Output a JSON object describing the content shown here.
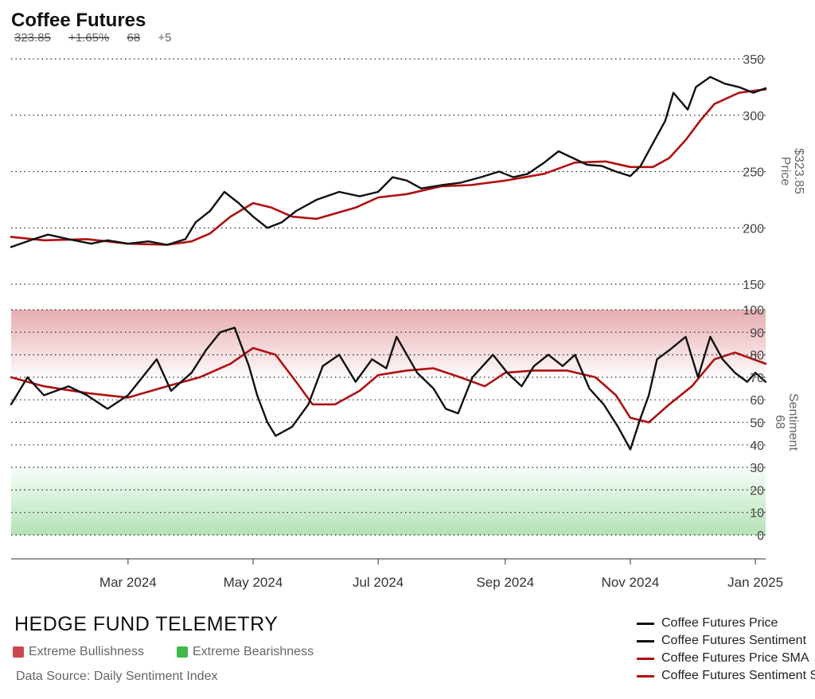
{
  "header": {
    "title": "Coffee Futures",
    "price": "323.85",
    "change": "+1.65%",
    "sentiment": "68",
    "sentiment_change": "+5"
  },
  "axes": {
    "price_label": "Price",
    "price_value": "$323.85",
    "sentiment_label": "Sentiment",
    "sentiment_value": "68"
  },
  "footer": {
    "brand": "HEDGE FUND TELEMETRY",
    "zone_bullish": "Extreme Bullishness",
    "zone_bearish": "Extreme Bearishness",
    "source": "Data Source: Daily Sentiment Index"
  },
  "legend": [
    {
      "label": "Coffee Futures Price",
      "color": "#111111"
    },
    {
      "label": "Coffee Futures Sentiment",
      "color": "#111111"
    },
    {
      "label": "Coffee Futures Price SMA",
      "color": "#b01010"
    },
    {
      "label": "Coffee Futures Sentiment SMA",
      "color": "#b01010"
    }
  ],
  "colors": {
    "price": "#111111",
    "sma": "#b01010",
    "bullish_zone": "#c9474f",
    "bearish_zone": "#3fb94a",
    "grid": "#222222"
  },
  "chart_data": {
    "type": "line",
    "x_range": [
      "2024-01-04",
      "2025-01-06"
    ],
    "x_ticks": [
      {
        "label": "Mar 2024",
        "date": "2024-03-01"
      },
      {
        "label": "May 2024",
        "date": "2024-05-01"
      },
      {
        "label": "Jul 2024",
        "date": "2024-07-01"
      },
      {
        "label": "Sep 2024",
        "date": "2024-09-01"
      },
      {
        "label": "Nov 2024",
        "date": "2024-11-01"
      },
      {
        "label": "Jan 2025",
        "date": "2025-01-01"
      }
    ],
    "price_panel": {
      "ylim": [
        150,
        350
      ],
      "yticks": [
        150,
        200,
        250,
        300,
        350
      ],
      "ylabel": "Price",
      "series": [
        {
          "name": "Coffee Futures Price",
          "points": [
            [
              "2024-01-04",
              183
            ],
            [
              "2024-01-15",
              190
            ],
            [
              "2024-01-22",
              194
            ],
            [
              "2024-02-01",
              190
            ],
            [
              "2024-02-12",
              186
            ],
            [
              "2024-02-20",
              189
            ],
            [
              "2024-03-01",
              186
            ],
            [
              "2024-03-11",
              188
            ],
            [
              "2024-03-20",
              185
            ],
            [
              "2024-03-29",
              190
            ],
            [
              "2024-04-03",
              205
            ],
            [
              "2024-04-10",
              215
            ],
            [
              "2024-04-17",
              232
            ],
            [
              "2024-04-24",
              222
            ],
            [
              "2024-05-01",
              210
            ],
            [
              "2024-05-08",
              200
            ],
            [
              "2024-05-15",
              205
            ],
            [
              "2024-05-22",
              215
            ],
            [
              "2024-06-01",
              225
            ],
            [
              "2024-06-12",
              232
            ],
            [
              "2024-06-22",
              228
            ],
            [
              "2024-07-01",
              232
            ],
            [
              "2024-07-08",
              245
            ],
            [
              "2024-07-15",
              242
            ],
            [
              "2024-07-22",
              235
            ],
            [
              "2024-08-01",
              238
            ],
            [
              "2024-08-10",
              240
            ],
            [
              "2024-08-20",
              245
            ],
            [
              "2024-08-29",
              250
            ],
            [
              "2024-09-05",
              245
            ],
            [
              "2024-09-12",
              248
            ],
            [
              "2024-09-20",
              258
            ],
            [
              "2024-09-27",
              268
            ],
            [
              "2024-10-04",
              262
            ],
            [
              "2024-10-11",
              256
            ],
            [
              "2024-10-18",
              255
            ],
            [
              "2024-10-25",
              250
            ],
            [
              "2024-11-01",
              246
            ],
            [
              "2024-11-06",
              255
            ],
            [
              "2024-11-12",
              275
            ],
            [
              "2024-11-18",
              295
            ],
            [
              "2024-11-22",
              320
            ],
            [
              "2024-11-29",
              305
            ],
            [
              "2024-12-03",
              325
            ],
            [
              "2024-12-10",
              334
            ],
            [
              "2024-12-17",
              328
            ],
            [
              "2024-12-24",
              325
            ],
            [
              "2024-12-31",
              320
            ],
            [
              "2025-01-06",
              324
            ]
          ]
        },
        {
          "name": "Coffee Futures Price SMA",
          "points": [
            [
              "2024-01-04",
              192
            ],
            [
              "2024-01-20",
              189
            ],
            [
              "2024-02-10",
              190
            ],
            [
              "2024-03-01",
              186
            ],
            [
              "2024-03-20",
              185
            ],
            [
              "2024-04-01",
              188
            ],
            [
              "2024-04-10",
              195
            ],
            [
              "2024-04-20",
              210
            ],
            [
              "2024-05-01",
              222
            ],
            [
              "2024-05-10",
              218
            ],
            [
              "2024-05-20",
              210
            ],
            [
              "2024-06-01",
              208
            ],
            [
              "2024-06-20",
              218
            ],
            [
              "2024-07-01",
              227
            ],
            [
              "2024-07-15",
              230
            ],
            [
              "2024-08-01",
              237
            ],
            [
              "2024-08-15",
              238
            ],
            [
              "2024-09-01",
              242
            ],
            [
              "2024-09-20",
              248
            ],
            [
              "2024-10-05",
              258
            ],
            [
              "2024-10-20",
              259
            ],
            [
              "2024-11-01",
              254
            ],
            [
              "2024-11-12",
              254
            ],
            [
              "2024-11-20",
              262
            ],
            [
              "2024-11-28",
              278
            ],
            [
              "2024-12-05",
              295
            ],
            [
              "2024-12-12",
              310
            ],
            [
              "2024-12-24",
              320
            ],
            [
              "2025-01-06",
              323
            ]
          ]
        }
      ]
    },
    "sentiment_panel": {
      "ylim": [
        0,
        100
      ],
      "yticks": [
        0,
        10,
        20,
        30,
        40,
        50,
        60,
        70,
        80,
        90,
        100
      ],
      "ylabel": "Sentiment",
      "bullish_zone": [
        70,
        100
      ],
      "bearish_zone": [
        0,
        30
      ],
      "series": [
        {
          "name": "Coffee Futures Sentiment",
          "points": [
            [
              "2024-01-04",
              58
            ],
            [
              "2024-01-12",
              70
            ],
            [
              "2024-01-20",
              62
            ],
            [
              "2024-02-01",
              66
            ],
            [
              "2024-02-10",
              62
            ],
            [
              "2024-02-20",
              56
            ],
            [
              "2024-03-01",
              62
            ],
            [
              "2024-03-08",
              70
            ],
            [
              "2024-03-15",
              78
            ],
            [
              "2024-03-22",
              64
            ],
            [
              "2024-04-01",
              72
            ],
            [
              "2024-04-08",
              82
            ],
            [
              "2024-04-15",
              90
            ],
            [
              "2024-04-22",
              92
            ],
            [
              "2024-04-29",
              75
            ],
            [
              "2024-05-03",
              62
            ],
            [
              "2024-05-08",
              50
            ],
            [
              "2024-05-12",
              44
            ],
            [
              "2024-05-20",
              48
            ],
            [
              "2024-05-28",
              58
            ],
            [
              "2024-06-04",
              75
            ],
            [
              "2024-06-12",
              80
            ],
            [
              "2024-06-20",
              68
            ],
            [
              "2024-06-28",
              78
            ],
            [
              "2024-07-05",
              74
            ],
            [
              "2024-07-10",
              88
            ],
            [
              "2024-07-20",
              72
            ],
            [
              "2024-07-28",
              65
            ],
            [
              "2024-08-03",
              56
            ],
            [
              "2024-08-09",
              54
            ],
            [
              "2024-08-16",
              70
            ],
            [
              "2024-08-26",
              80
            ],
            [
              "2024-09-02",
              72
            ],
            [
              "2024-09-09",
              66
            ],
            [
              "2024-09-15",
              75
            ],
            [
              "2024-09-22",
              80
            ],
            [
              "2024-09-29",
              75
            ],
            [
              "2024-10-05",
              80
            ],
            [
              "2024-10-12",
              65
            ],
            [
              "2024-10-19",
              58
            ],
            [
              "2024-10-26",
              48
            ],
            [
              "2024-11-01",
              38
            ],
            [
              "2024-11-06",
              52
            ],
            [
              "2024-11-10",
              62
            ],
            [
              "2024-11-14",
              78
            ],
            [
              "2024-11-20",
              82
            ],
            [
              "2024-11-28",
              88
            ],
            [
              "2024-12-04",
              70
            ],
            [
              "2024-12-10",
              88
            ],
            [
              "2024-12-16",
              78
            ],
            [
              "2024-12-22",
              72
            ],
            [
              "2024-12-28",
              68
            ],
            [
              "2025-01-01",
              72
            ],
            [
              "2025-01-06",
              68
            ]
          ]
        },
        {
          "name": "Coffee Futures Sentiment SMA",
          "points": [
            [
              "2024-01-04",
              70
            ],
            [
              "2024-01-20",
              66
            ],
            [
              "2024-02-10",
              63
            ],
            [
              "2024-03-01",
              61
            ],
            [
              "2024-03-20",
              66
            ],
            [
              "2024-04-05",
              70
            ],
            [
              "2024-04-20",
              76
            ],
            [
              "2024-05-01",
              83
            ],
            [
              "2024-05-12",
              80
            ],
            [
              "2024-05-22",
              68
            ],
            [
              "2024-05-30",
              58
            ],
            [
              "2024-06-10",
              58
            ],
            [
              "2024-06-22",
              64
            ],
            [
              "2024-07-01",
              71
            ],
            [
              "2024-07-15",
              73
            ],
            [
              "2024-07-28",
              74
            ],
            [
              "2024-08-10",
              70
            ],
            [
              "2024-08-22",
              66
            ],
            [
              "2024-09-01",
              72
            ],
            [
              "2024-09-15",
              73
            ],
            [
              "2024-10-01",
              73
            ],
            [
              "2024-10-15",
              70
            ],
            [
              "2024-10-25",
              62
            ],
            [
              "2024-11-01",
              52
            ],
            [
              "2024-11-10",
              50
            ],
            [
              "2024-11-20",
              58
            ],
            [
              "2024-12-01",
              66
            ],
            [
              "2024-12-12",
              78
            ],
            [
              "2024-12-22",
              81
            ],
            [
              "2025-01-06",
              76
            ]
          ]
        }
      ]
    }
  }
}
